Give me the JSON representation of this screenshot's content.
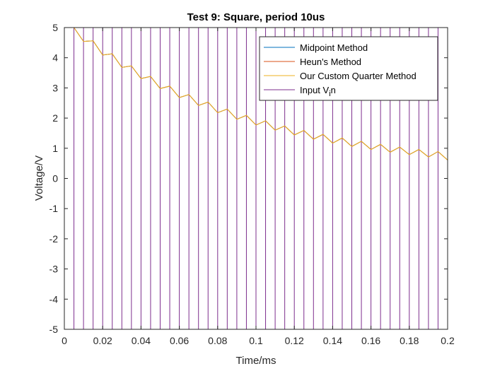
{
  "chart_data": {
    "type": "line",
    "title": "Test 9: Square, period 10us",
    "xlabel": "Time/ms",
    "ylabel": "Voltage/V",
    "xlim": [
      0,
      0.2
    ],
    "ylim": [
      -5,
      5
    ],
    "xticks": [
      0,
      0.02,
      0.04,
      0.06,
      0.08,
      0.1,
      0.12,
      0.14,
      0.16,
      0.18,
      0.2
    ],
    "xtick_labels": [
      "0",
      "0.02",
      "0.04",
      "0.06",
      "0.08",
      "0.1",
      "0.12",
      "0.14",
      "0.16",
      "0.18",
      "0.2"
    ],
    "yticks": [
      -5,
      -4,
      -3,
      -2,
      -1,
      0,
      1,
      2,
      3,
      4,
      5
    ],
    "ytick_labels": [
      "-5",
      "-4",
      "-3",
      "-2",
      "-1",
      "0",
      "1",
      "2",
      "3",
      "4",
      "5"
    ],
    "grid": false,
    "legend_position": "top-right",
    "input_square_wave": {
      "high": 5,
      "low": -5,
      "period_ms": 0.01,
      "start_ms": 0
    },
    "series": [
      {
        "name": "Midpoint Method",
        "color": "#0072BD",
        "x": [
          0,
          0.005,
          0.01,
          0.015,
          0.02,
          0.025,
          0.03,
          0.035,
          0.04,
          0.045,
          0.05,
          0.055,
          0.06,
          0.065,
          0.07,
          0.075,
          0.08,
          0.085,
          0.09,
          0.095,
          0.1,
          0.105,
          0.11,
          0.115,
          0.12,
          0.125,
          0.13,
          0.135,
          0.14,
          0.145,
          0.15,
          0.155,
          0.16,
          0.165,
          0.17,
          0.175,
          0.18,
          0.185,
          0.19,
          0.195,
          0.2
        ],
        "y": [
          5,
          5,
          4.54,
          4.56,
          4.09,
          4.13,
          3.68,
          3.73,
          3.31,
          3.38,
          2.98,
          3.06,
          2.68,
          2.78,
          2.42,
          2.53,
          2.18,
          2.3,
          1.96,
          2.09,
          1.77,
          1.91,
          1.6,
          1.74,
          1.44,
          1.59,
          1.3,
          1.46,
          1.17,
          1.34,
          1.06,
          1.23,
          0.96,
          1.13,
          0.87,
          1.04,
          0.79,
          0.96,
          0.71,
          0.89,
          0.61
        ]
      },
      {
        "name": "Heun's Method",
        "color": "#D95319",
        "x": [
          0,
          0.005,
          0.01,
          0.015,
          0.02,
          0.025,
          0.03,
          0.035,
          0.04,
          0.045,
          0.05,
          0.055,
          0.06,
          0.065,
          0.07,
          0.075,
          0.08,
          0.085,
          0.09,
          0.095,
          0.1,
          0.105,
          0.11,
          0.115,
          0.12,
          0.125,
          0.13,
          0.135,
          0.14,
          0.145,
          0.15,
          0.155,
          0.16,
          0.165,
          0.17,
          0.175,
          0.18,
          0.185,
          0.19,
          0.195,
          0.2
        ],
        "y": [
          5,
          5,
          4.54,
          4.56,
          4.09,
          4.13,
          3.68,
          3.73,
          3.31,
          3.38,
          2.98,
          3.06,
          2.68,
          2.78,
          2.42,
          2.53,
          2.18,
          2.3,
          1.96,
          2.09,
          1.77,
          1.91,
          1.6,
          1.74,
          1.44,
          1.59,
          1.3,
          1.46,
          1.17,
          1.34,
          1.06,
          1.23,
          0.96,
          1.13,
          0.87,
          1.04,
          0.79,
          0.96,
          0.71,
          0.89,
          0.61
        ]
      },
      {
        "name": "Our Custom Quarter Method",
        "color": "#EDB120",
        "x": [
          0,
          0.005,
          0.01,
          0.015,
          0.02,
          0.025,
          0.03,
          0.035,
          0.04,
          0.045,
          0.05,
          0.055,
          0.06,
          0.065,
          0.07,
          0.075,
          0.08,
          0.085,
          0.09,
          0.095,
          0.1,
          0.105,
          0.11,
          0.115,
          0.12,
          0.125,
          0.13,
          0.135,
          0.14,
          0.145,
          0.15,
          0.155,
          0.16,
          0.165,
          0.17,
          0.175,
          0.18,
          0.185,
          0.19,
          0.195,
          0.2
        ],
        "y": [
          5,
          5,
          4.54,
          4.56,
          4.09,
          4.13,
          3.68,
          3.73,
          3.31,
          3.38,
          2.98,
          3.06,
          2.68,
          2.78,
          2.42,
          2.53,
          2.18,
          2.3,
          1.96,
          2.09,
          1.77,
          1.91,
          1.6,
          1.74,
          1.44,
          1.59,
          1.3,
          1.46,
          1.17,
          1.34,
          1.06,
          1.23,
          0.96,
          1.13,
          0.87,
          1.04,
          0.79,
          0.96,
          0.71,
          0.89,
          0.61
        ]
      },
      {
        "name": "Input V",
        "name_subscript": "i",
        "name_suffix": "n",
        "color": "#7E2F8E",
        "kind": "square"
      }
    ]
  }
}
